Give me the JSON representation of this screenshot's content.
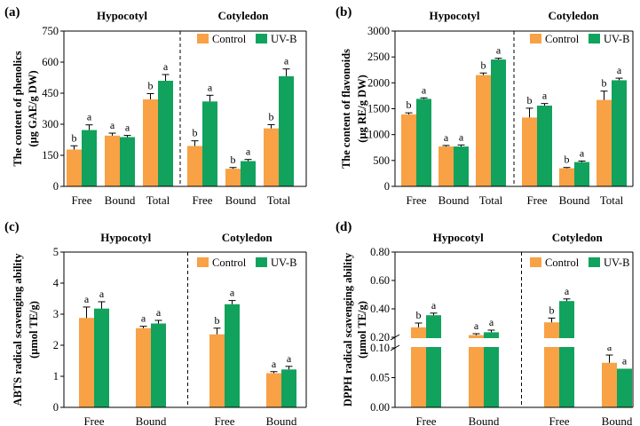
{
  "colors": {
    "control": "#f8a145",
    "uvb": "#11a25d",
    "axis": "#000000"
  },
  "chart_data": [
    {
      "id": "a",
      "panel_label": "(a)",
      "type": "bar",
      "ylabel_line1": "The content of phenolics",
      "ylabel_line2": "(μg GAE/g DW)",
      "ylim": [
        0,
        750
      ],
      "yticks": [
        0,
        150,
        300,
        450,
        600,
        750
      ],
      "ytick_labels": [
        "0",
        "150",
        "300",
        "450",
        "600",
        "750"
      ],
      "groups": [
        {
          "name": "Hypocotyl",
          "categories": [
            "Free",
            "Bound",
            "Total"
          ]
        },
        {
          "name": "Cotyledon",
          "categories": [
            "Free",
            "Bound",
            "Total"
          ]
        }
      ],
      "legend": [
        "Control",
        "UV-B"
      ],
      "series": [
        {
          "name": "Control",
          "values": [
            178,
            245,
            420,
            195,
            85,
            280
          ],
          "errors": [
            18,
            12,
            28,
            25,
            6,
            18
          ],
          "letters": [
            "b",
            "a",
            "b",
            "b",
            "b",
            "b"
          ]
        },
        {
          "name": "UV-B",
          "values": [
            272,
            238,
            510,
            410,
            122,
            532
          ],
          "errors": [
            25,
            8,
            30,
            30,
            8,
            35
          ],
          "letters": [
            "a",
            "a",
            "a",
            "a",
            "a",
            "a"
          ]
        }
      ]
    },
    {
      "id": "b",
      "panel_label": "(b)",
      "type": "bar",
      "ylabel_line1": "The content of flavonoids",
      "ylabel_line2": "(μg RE/g DW)",
      "ylim": [
        0,
        3000
      ],
      "yticks": [
        0,
        500,
        1000,
        1500,
        2000,
        2500,
        3000
      ],
      "ytick_labels": [
        "0",
        "500",
        "1000",
        "1500",
        "2000",
        "2500",
        "3000"
      ],
      "groups": [
        {
          "name": "Hypocotyl",
          "categories": [
            "Free",
            "Bound",
            "Total"
          ]
        },
        {
          "name": "Cotyledon",
          "categories": [
            "Free",
            "Bound",
            "Total"
          ]
        }
      ],
      "legend": [
        "Control",
        "UV-B"
      ],
      "series": [
        {
          "name": "Control",
          "values": [
            1390,
            770,
            2150,
            1330,
            350,
            1670
          ],
          "errors": [
            30,
            20,
            40,
            180,
            15,
            170
          ],
          "letters": [
            "b",
            "a",
            "b",
            "b",
            "b",
            "b"
          ]
        },
        {
          "name": "UV-B",
          "values": [
            1690,
            770,
            2450,
            1560,
            470,
            2050
          ],
          "errors": [
            20,
            30,
            25,
            40,
            20,
            40
          ],
          "letters": [
            "a",
            "a",
            "a",
            "a",
            "a",
            "a"
          ]
        }
      ]
    },
    {
      "id": "c",
      "panel_label": "(c)",
      "type": "bar",
      "ylabel_line1": "ABTS radical scavenging ability",
      "ylabel_line2": "(μmol TE/g)",
      "ylim": [
        0,
        5
      ],
      "yticks": [
        0,
        1,
        2,
        3,
        4,
        5
      ],
      "ytick_labels": [
        "0",
        "1",
        "2",
        "3",
        "4",
        "5"
      ],
      "groups": [
        {
          "name": "Hypocotyl",
          "categories": [
            "Free",
            "Bound"
          ]
        },
        {
          "name": "Cotyledon",
          "categories": [
            "Free",
            "Bound"
          ]
        }
      ],
      "legend": [
        "Control",
        "UV-B"
      ],
      "series": [
        {
          "name": "Control",
          "values": [
            2.88,
            2.55,
            2.35,
            1.1
          ],
          "errors": [
            0.35,
            0.06,
            0.2,
            0.05
          ],
          "letters": [
            "a",
            "a",
            "b",
            "a"
          ]
        },
        {
          "name": "UV-B",
          "values": [
            3.18,
            2.7,
            3.32,
            1.22
          ],
          "errors": [
            0.22,
            0.1,
            0.12,
            0.1
          ],
          "letters": [
            "a",
            "a",
            "a",
            "a"
          ]
        }
      ]
    },
    {
      "id": "d",
      "panel_label": "(d)",
      "type": "bar",
      "axis_break": true,
      "ylabel_line1": "DPPH radical scavenging ability",
      "ylabel_line2": "(μmol TE/g)",
      "ylim_lower": [
        0,
        0.1
      ],
      "ylim_upper": [
        0.2,
        0.8
      ],
      "yticks_lower": [
        0,
        0.05,
        0.1
      ],
      "ytick_labels_lower": [
        "0.00",
        "0.05",
        "0.10"
      ],
      "yticks_upper": [
        0.2,
        0.4,
        0.6,
        0.8
      ],
      "ytick_labels_upper": [
        "0.20",
        "0.40",
        "0.60",
        "0.80"
      ],
      "groups": [
        {
          "name": "Hypocotyl",
          "categories": [
            "Free",
            "Bound"
          ]
        },
        {
          "name": "Cotyledon",
          "categories": [
            "Free",
            "Bound"
          ]
        }
      ],
      "legend": [
        "Control",
        "UV-B"
      ],
      "series": [
        {
          "name": "Control",
          "values": [
            0.27,
            0.215,
            0.305,
            0.075
          ],
          "errors": [
            0.03,
            0.01,
            0.03,
            0.013
          ],
          "letters": [
            "b",
            "a",
            "b",
            "a"
          ]
        },
        {
          "name": "UV-B",
          "values": [
            0.355,
            0.235,
            0.455,
            0.065
          ],
          "errors": [
            0.015,
            0.015,
            0.015,
            0.0
          ],
          "letters": [
            "a",
            "a",
            "a",
            "a"
          ]
        }
      ]
    }
  ]
}
